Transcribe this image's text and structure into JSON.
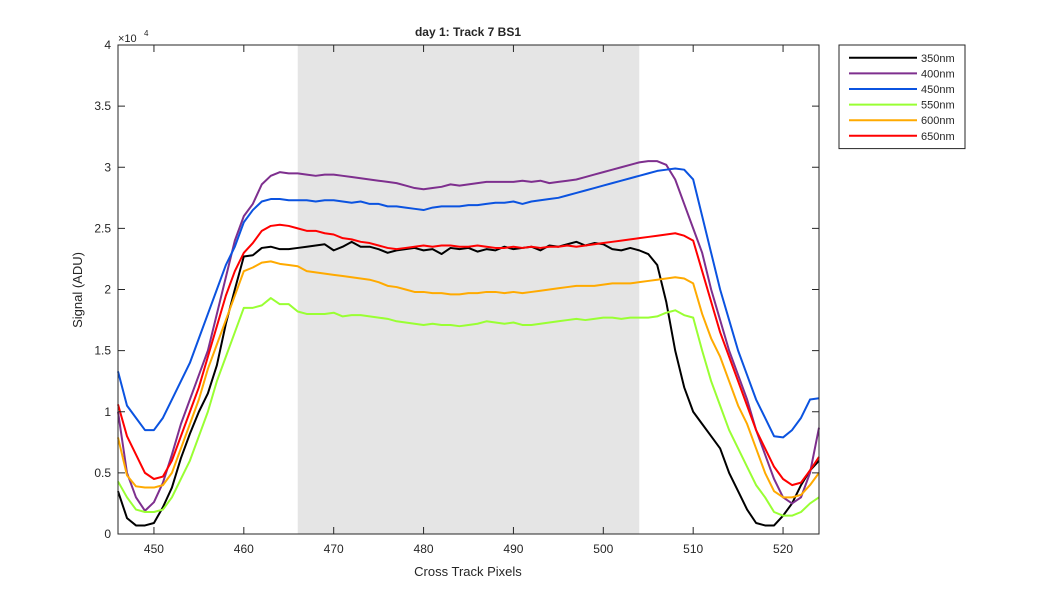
{
  "chart_data": {
    "type": "line",
    "title": "day 1: Track 7  BS1",
    "xlabel": "Cross Track Pixels",
    "ylabel": "Signal (ADU)",
    "exponent_label": "×10",
    "exponent_power": "4",
    "xlim": [
      446,
      524
    ],
    "ylim": [
      0,
      40000
    ],
    "xticks": [
      450,
      460,
      470,
      480,
      490,
      500,
      510,
      520
    ],
    "yticks": [
      0,
      5000,
      10000,
      15000,
      20000,
      25000,
      30000,
      35000,
      40000
    ],
    "ytick_labels": [
      "0",
      "0.5",
      "1",
      "1.5",
      "2",
      "2.5",
      "3",
      "3.5",
      "4"
    ],
    "grid": false,
    "legend_position": "outside-top-right",
    "shaded_region": {
      "x_start": 466,
      "x_end": 504,
      "color": "#e5e5e5"
    },
    "x": [
      446,
      447,
      448,
      449,
      450,
      451,
      452,
      453,
      454,
      455,
      456,
      457,
      458,
      459,
      460,
      461,
      462,
      463,
      464,
      465,
      466,
      467,
      468,
      469,
      470,
      471,
      472,
      473,
      474,
      475,
      476,
      477,
      478,
      479,
      480,
      481,
      482,
      483,
      484,
      485,
      486,
      487,
      488,
      489,
      490,
      491,
      492,
      493,
      494,
      495,
      496,
      497,
      498,
      499,
      500,
      501,
      502,
      503,
      504,
      505,
      506,
      507,
      508,
      509,
      510,
      511,
      512,
      513,
      514,
      515,
      516,
      517,
      518,
      519,
      520,
      521,
      522,
      523,
      524
    ],
    "series": [
      {
        "name": "350nm",
        "color": "#000000",
        "values": [
          3500,
          1300,
          700,
          700,
          900,
          2200,
          3800,
          6200,
          8200,
          10000,
          11500,
          13800,
          17200,
          20000,
          22700,
          22800,
          23400,
          23500,
          23300,
          23300,
          23400,
          23500,
          23600,
          23700,
          23200,
          23500,
          23900,
          23500,
          23500,
          23300,
          23000,
          23200,
          23300,
          23400,
          23200,
          23300,
          22900,
          23400,
          23300,
          23400,
          23100,
          23300,
          23200,
          23500,
          23300,
          23400,
          23500,
          23200,
          23600,
          23500,
          23700,
          23900,
          23600,
          23800,
          23700,
          23300,
          23200,
          23400,
          23200,
          22900,
          22000,
          19000,
          15000,
          12000,
          10000,
          9000,
          8000,
          7000,
          5000,
          3500,
          2000,
          900,
          700,
          700,
          1500,
          2500,
          4000,
          5200,
          6000
        ]
      },
      {
        "name": "400nm",
        "color": "#7e2f8e",
        "values": [
          10000,
          5000,
          3000,
          1900,
          2600,
          4200,
          6500,
          9000,
          11000,
          13000,
          15000,
          18000,
          21000,
          24000,
          26000,
          27000,
          28600,
          29300,
          29600,
          29500,
          29500,
          29400,
          29300,
          29400,
          29400,
          29300,
          29200,
          29100,
          29000,
          28900,
          28800,
          28700,
          28500,
          28300,
          28200,
          28300,
          28400,
          28600,
          28500,
          28600,
          28700,
          28800,
          28800,
          28800,
          28800,
          28900,
          28800,
          28900,
          28700,
          28800,
          28900,
          29000,
          29200,
          29400,
          29600,
          29800,
          30000,
          30200,
          30400,
          30500,
          30500,
          30200,
          29000,
          27000,
          25000,
          23000,
          20000,
          17500,
          15000,
          13000,
          11000,
          8500,
          6500,
          4500,
          3000,
          2500,
          3000,
          5000,
          8700
        ]
      },
      {
        "name": "450nm",
        "color": "#0b53e0",
        "values": [
          13300,
          10500,
          9500,
          8500,
          8500,
          9500,
          11000,
          12500,
          14000,
          16000,
          18000,
          20000,
          22000,
          23500,
          25500,
          26500,
          27200,
          27400,
          27400,
          27300,
          27300,
          27300,
          27200,
          27300,
          27300,
          27200,
          27100,
          27200,
          27000,
          27000,
          26800,
          26800,
          26700,
          26600,
          26500,
          26700,
          26800,
          26800,
          26800,
          26900,
          26900,
          27000,
          27100,
          27100,
          27200,
          27000,
          27200,
          27300,
          27400,
          27500,
          27700,
          27900,
          28100,
          28300,
          28500,
          28700,
          28900,
          29100,
          29300,
          29500,
          29700,
          29800,
          29900,
          29800,
          29000,
          26000,
          23000,
          20000,
          17500,
          15000,
          13000,
          11000,
          9500,
          8000,
          7900,
          8500,
          9500,
          11000,
          11100
        ]
      },
      {
        "name": "550nm",
        "color": "#99ff33",
        "values": [
          4300,
          3000,
          2000,
          1800,
          1800,
          2000,
          3000,
          4500,
          6000,
          8000,
          10000,
          12500,
          14500,
          16500,
          18500,
          18500,
          18700,
          19300,
          18800,
          18800,
          18200,
          18000,
          18000,
          18000,
          18100,
          17800,
          17900,
          17900,
          17800,
          17700,
          17600,
          17400,
          17300,
          17200,
          17100,
          17200,
          17100,
          17100,
          17000,
          17100,
          17200,
          17400,
          17300,
          17200,
          17300,
          17100,
          17100,
          17200,
          17300,
          17400,
          17500,
          17600,
          17500,
          17600,
          17700,
          17700,
          17600,
          17700,
          17700,
          17700,
          17800,
          18100,
          18300,
          17900,
          17700,
          15000,
          12500,
          10500,
          8500,
          7000,
          5500,
          4000,
          3000,
          1800,
          1500,
          1500,
          1800,
          2500,
          3000
        ]
      },
      {
        "name": "600nm",
        "color": "#ffaa00",
        "values": [
          7900,
          4800,
          3900,
          3800,
          3800,
          4000,
          5000,
          7000,
          9000,
          11000,
          13500,
          15500,
          17500,
          19500,
          21500,
          21800,
          22200,
          22300,
          22100,
          22000,
          21900,
          21500,
          21400,
          21300,
          21200,
          21100,
          21000,
          20900,
          20800,
          20600,
          20300,
          20200,
          20000,
          19800,
          19800,
          19700,
          19700,
          19600,
          19600,
          19700,
          19700,
          19800,
          19800,
          19700,
          19800,
          19700,
          19800,
          19900,
          20000,
          20100,
          20200,
          20300,
          20300,
          20300,
          20400,
          20500,
          20500,
          20500,
          20600,
          20700,
          20800,
          20900,
          21000,
          20900,
          20500,
          18000,
          16000,
          14500,
          12500,
          10500,
          9000,
          7000,
          5000,
          3500,
          3000,
          3000,
          3200,
          4000,
          5000
        ]
      },
      {
        "name": "650nm",
        "color": "#ff0000",
        "values": [
          10600,
          8000,
          6500,
          5000,
          4500,
          4700,
          6000,
          8000,
          10000,
          12000,
          14500,
          17000,
          19500,
          21500,
          23000,
          23800,
          24800,
          25200,
          25300,
          25200,
          25000,
          24800,
          24800,
          24600,
          24500,
          24200,
          24100,
          23900,
          23800,
          23600,
          23400,
          23300,
          23400,
          23500,
          23600,
          23500,
          23600,
          23600,
          23500,
          23500,
          23600,
          23500,
          23400,
          23400,
          23500,
          23400,
          23500,
          23400,
          23500,
          23500,
          23600,
          23500,
          23600,
          23700,
          23800,
          23900,
          24000,
          24100,
          24200,
          24300,
          24400,
          24500,
          24600,
          24400,
          24000,
          21500,
          19000,
          16500,
          14500,
          12500,
          10500,
          8500,
          7000,
          5500,
          4500,
          4000,
          4200,
          5200,
          6300
        ]
      }
    ]
  }
}
